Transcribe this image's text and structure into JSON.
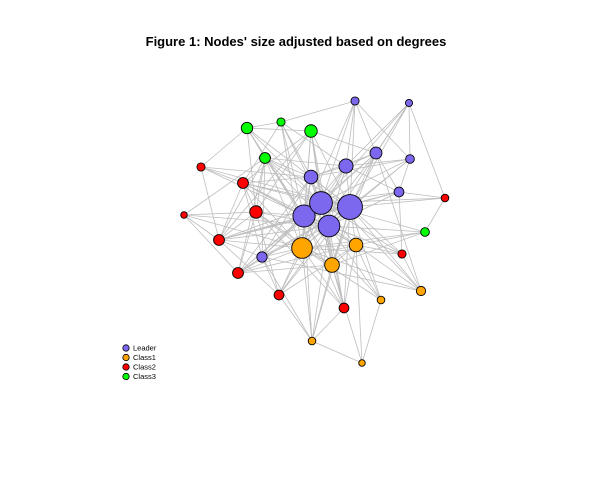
{
  "title": "Figure 1: Nodes' size adjusted based on degrees",
  "groups": {
    "Leader": "#7b68ee",
    "Class1": "#ffa500",
    "Class2": "#ff0000",
    "Class3": "#00ff00"
  },
  "legend": [
    {
      "label": "Leader",
      "group": "Leader"
    },
    {
      "label": "Class1",
      "group": "Class1"
    },
    {
      "label": "Class2",
      "group": "Class2"
    },
    {
      "label": "Class3",
      "group": "Class3"
    }
  ],
  "edge_color": "#bebebe",
  "nodes": [
    {
      "id": "L1",
      "group": "Leader",
      "degree": 38
    },
    {
      "id": "L2",
      "group": "Leader",
      "degree": 34
    },
    {
      "id": "L3",
      "group": "Leader",
      "degree": 32
    },
    {
      "id": "L4",
      "group": "Leader",
      "degree": 33
    },
    {
      "id": "L5",
      "group": "Leader",
      "degree": 18
    },
    {
      "id": "L6",
      "group": "Leader",
      "degree": 17
    },
    {
      "id": "L7",
      "group": "Leader",
      "degree": 14
    },
    {
      "id": "L8",
      "group": "Leader",
      "degree": 11
    },
    {
      "id": "L9",
      "group": "Leader",
      "degree": 10
    },
    {
      "id": "L10",
      "group": "Leader",
      "degree": 8
    },
    {
      "id": "L11",
      "group": "Leader",
      "degree": 7
    },
    {
      "id": "L12",
      "group": "Leader",
      "degree": 5
    },
    {
      "id": "C1a",
      "group": "Class1",
      "degree": 30
    },
    {
      "id": "C1b",
      "group": "Class1",
      "degree": 19
    },
    {
      "id": "C1c",
      "group": "Class1",
      "degree": 17
    },
    {
      "id": "C1d",
      "group": "Class1",
      "degree": 9
    },
    {
      "id": "C1e",
      "group": "Class1",
      "degree": 6
    },
    {
      "id": "C1f",
      "group": "Class1",
      "degree": 6
    },
    {
      "id": "C1g",
      "group": "Class1",
      "degree": 4
    },
    {
      "id": "C2a",
      "group": "Class2",
      "degree": 15
    },
    {
      "id": "C2b",
      "group": "Class2",
      "degree": 12
    },
    {
      "id": "C2c",
      "group": "Class2",
      "degree": 12
    },
    {
      "id": "C2d",
      "group": "Class2",
      "degree": 12
    },
    {
      "id": "C2e",
      "group": "Class2",
      "degree": 10
    },
    {
      "id": "C2f",
      "group": "Class2",
      "degree": 10
    },
    {
      "id": "C2g",
      "group": "Class2",
      "degree": 7
    },
    {
      "id": "C2h",
      "group": "Class2",
      "degree": 7
    },
    {
      "id": "C2i",
      "group": "Class2",
      "degree": 6
    },
    {
      "id": "C2j",
      "group": "Class2",
      "degree": 4
    },
    {
      "id": "C3a",
      "group": "Class3",
      "degree": 15
    },
    {
      "id": "C3b",
      "group": "Class3",
      "degree": 13
    },
    {
      "id": "C3c",
      "group": "Class3",
      "degree": 12
    },
    {
      "id": "C3d",
      "group": "Class3",
      "degree": 8
    },
    {
      "id": "C3e",
      "group": "Class3",
      "degree": 7
    }
  ]
}
